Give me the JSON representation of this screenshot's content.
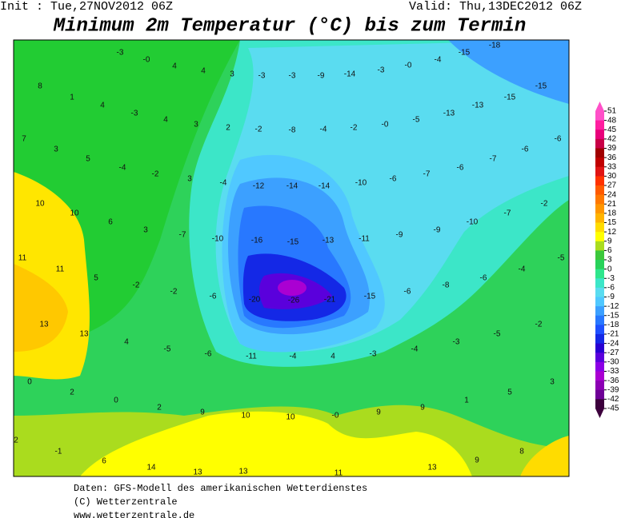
{
  "header": {
    "init": "Init : Tue,27NOV2012 06Z",
    "valid": "Valid: Thu,13DEC2012 06Z",
    "title": "Minimum 2m Temperatur (°C) bis zum Termin"
  },
  "map": {
    "labels": [
      -3,
      {
        "value": 0,
        "label": "-0"
      },
      4,
      4,
      3,
      -3,
      -3,
      -9,
      -14,
      -3,
      {
        "value": 0,
        "label": "-0"
      },
      -4,
      -15,
      -18,
      8,
      1,
      4,
      -3,
      4,
      3,
      2,
      -2,
      -8,
      -4,
      -2,
      {
        "value": 0,
        "label": "-0"
      },
      -5,
      -13,
      -13,
      -15,
      -15,
      7,
      3,
      5,
      -4,
      -2,
      3,
      -4,
      -12,
      -14,
      -14,
      -10,
      -6,
      -7,
      -6,
      -7,
      -6,
      -6,
      10,
      10,
      6,
      3,
      -7,
      -10,
      -16,
      -15,
      -13,
      -11,
      -9,
      -9,
      -10,
      -7,
      -2,
      11,
      11,
      5,
      -2,
      -2,
      -6,
      -20,
      -26,
      -21,
      -15,
      -6,
      -8,
      -6,
      -4,
      -5,
      13,
      13,
      4,
      -5,
      -6,
      -11,
      -4,
      4,
      -3,
      -4,
      -3,
      -5,
      -2,
      0,
      2,
      0,
      2,
      9,
      10,
      10,
      {
        "value": 0,
        "label": "-0"
      },
      9,
      9,
      1,
      5,
      3,
      2,
      -1,
      6,
      14,
      13,
      13,
      11,
      13,
      9,
      8
    ]
  },
  "legend": {
    "levels": [
      51,
      48,
      45,
      42,
      39,
      36,
      33,
      30,
      27,
      24,
      21,
      18,
      15,
      12,
      9,
      6,
      3,
      0,
      -3,
      -6,
      -9,
      -12,
      -15,
      -18,
      -21,
      -24,
      -27,
      -30,
      -33,
      -36,
      -39,
      -42,
      -45
    ],
    "colors": [
      "#ff50c8",
      "#ff1ea0",
      "#e8007a",
      "#c80046",
      "#a00000",
      "#c00000",
      "#e01414",
      "#ff3200",
      "#ff5a00",
      "#ff7800",
      "#ff9600",
      "#ffb400",
      "#ffdc00",
      "#ffff00",
      "#aadc1e",
      "#3cc83c",
      "#28d25a",
      "#2ee68c",
      "#3ce6c8",
      "#5adcf0",
      "#50c8ff",
      "#3ca0ff",
      "#2878ff",
      "#1e50ff",
      "#1428e6",
      "#2800d2",
      "#5a00dc",
      "#8c00e6",
      "#aa00d2",
      "#8c00b4",
      "#6e0096",
      "#3c003c"
    ]
  },
  "footer": {
    "lines": [
      "Daten: GFS-Modell des amerikanischen Wetterdienstes",
      "(C) Wetterzentrale",
      "www.wetterzentrale.de"
    ]
  }
}
